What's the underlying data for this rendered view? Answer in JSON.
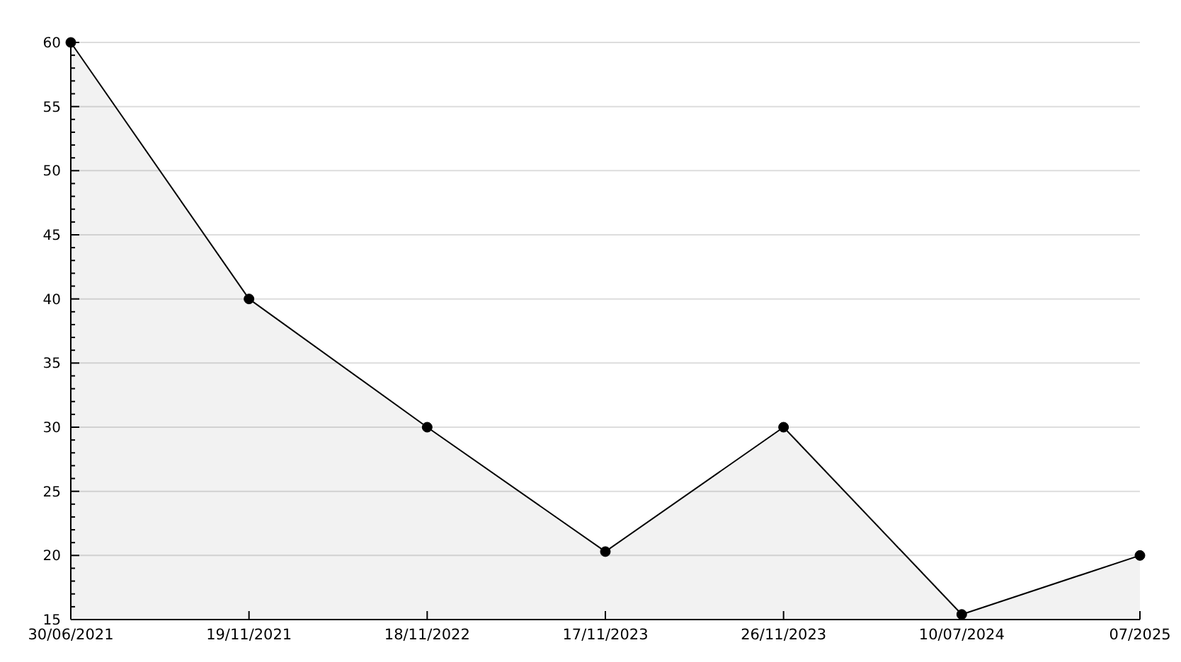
{
  "chart_data": {
    "type": "area",
    "categories": [
      "30/06/2021",
      "19/11/2021",
      "18/11/2022",
      "17/11/2023",
      "26/11/2023",
      "10/07/2024",
      "07/2025"
    ],
    "series": [
      {
        "color": "#000000",
        "values": [
          60,
          40,
          30,
          20.3,
          30,
          15.4,
          20
        ]
      }
    ],
    "ylim": [
      15,
      60
    ],
    "yticks": [
      15,
      {
        "value": 16,
        "label": null
      },
      {
        "value": 17,
        "label": null
      },
      {
        "value": 18,
        "label": null
      },
      {
        "value": 19,
        "label": null
      },
      20,
      {
        "value": 21,
        "label": null
      },
      {
        "value": 22,
        "label": null
      },
      {
        "value": 23,
        "label": null
      },
      {
        "value": 24,
        "label": null
      },
      25,
      {
        "value": 26,
        "label": null
      },
      {
        "value": 27,
        "label": null
      },
      {
        "value": 28,
        "label": null
      },
      {
        "value": 29,
        "label": null
      },
      30,
      {
        "value": 31,
        "label": null
      },
      {
        "value": 32,
        "label": null
      },
      {
        "value": 33,
        "label": null
      },
      {
        "value": 34,
        "label": null
      },
      35,
      {
        "value": 36,
        "label": null
      },
      {
        "value": 37,
        "label": null
      },
      {
        "value": 38,
        "label": null
      },
      {
        "value": 39,
        "label": null
      },
      40,
      {
        "value": 41,
        "label": null
      },
      {
        "value": 42,
        "label": null
      },
      {
        "value": 43,
        "label": null
      },
      {
        "value": 44,
        "label": null
      },
      45,
      {
        "value": 46,
        "label": null
      },
      {
        "value": 47,
        "label": null
      },
      {
        "value": 48,
        "label": null
      },
      {
        "value": 49,
        "label": null
      },
      50,
      {
        "value": 51,
        "label": null
      },
      {
        "value": 52,
        "label": null
      },
      {
        "value": 53,
        "label": null
      },
      {
        "value": 54,
        "label": null
      },
      55,
      {
        "value": 56,
        "label": null
      },
      {
        "value": 57,
        "label": null
      },
      {
        "value": 58,
        "label": null
      },
      {
        "value": 59,
        "label": null
      },
      60
    ],
    "grid": "y",
    "marker": "circle"
  }
}
